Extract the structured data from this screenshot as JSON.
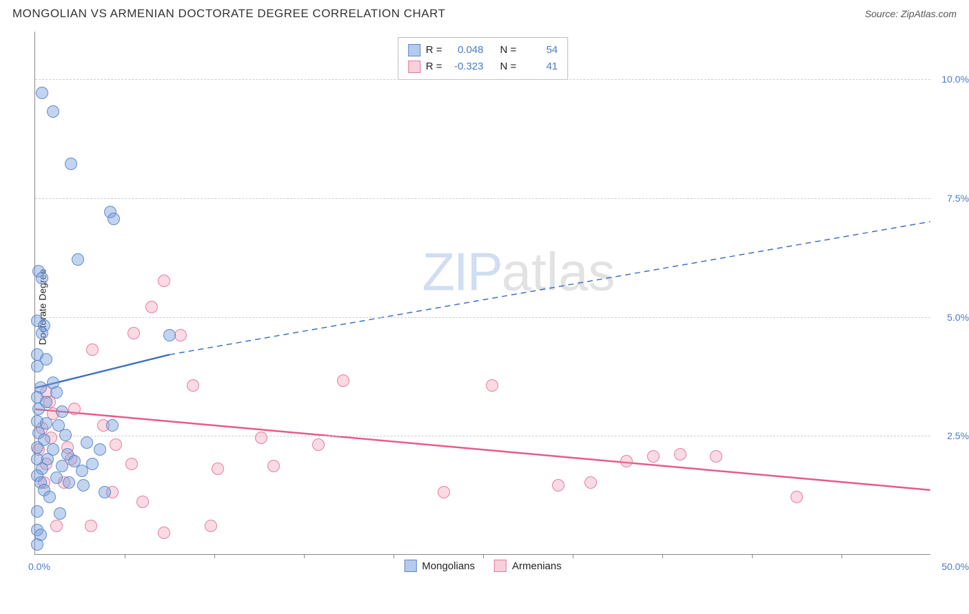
{
  "header": {
    "title": "MONGOLIAN VS ARMENIAN DOCTORATE DEGREE CORRELATION CHART",
    "source": "Source: ZipAtlas.com"
  },
  "chart": {
    "type": "scatter",
    "ylabel": "Doctorate Degree",
    "xlim": [
      0,
      50
    ],
    "ylim": [
      0,
      11
    ],
    "yticks": [
      2.5,
      5.0,
      7.5,
      10.0
    ],
    "ytick_labels": [
      "2.5%",
      "5.0%",
      "7.5%",
      "10.0%"
    ],
    "xtick_positions": [
      5,
      10,
      15,
      20,
      25,
      30,
      35,
      40,
      45
    ],
    "xlabel_min": "0.0%",
    "xlabel_max": "50.0%",
    "background_color": "#ffffff",
    "grid_color": "#cccccc",
    "axis_color": "#888888",
    "tick_label_color": "#4a7bc8",
    "series": {
      "mongolians": {
        "label": "Mongolians",
        "fill_color": "rgba(120,160,220,0.45)",
        "stroke_color": "rgba(88,130,200,0.9)",
        "marker_radius": 9,
        "trend": {
          "x0": 0,
          "y0": 3.5,
          "x1": 7.5,
          "y1": 4.2,
          "solid_until_x": 7.5,
          "dash_x1": 50,
          "dash_y1": 7.0,
          "line_color": "#3f6fc3",
          "line_width": 2.5
        },
        "R": "0.048",
        "N": "54",
        "points": [
          [
            0.4,
            9.7
          ],
          [
            1.0,
            9.3
          ],
          [
            2.0,
            8.2
          ],
          [
            4.2,
            7.2
          ],
          [
            4.4,
            7.05
          ],
          [
            2.4,
            6.2
          ],
          [
            0.2,
            5.95
          ],
          [
            0.4,
            5.8
          ],
          [
            0.1,
            4.9
          ],
          [
            0.5,
            4.8
          ],
          [
            0.4,
            4.65
          ],
          [
            7.5,
            4.6
          ],
          [
            0.1,
            4.2
          ],
          [
            0.6,
            4.1
          ],
          [
            0.1,
            3.95
          ],
          [
            1.0,
            3.6
          ],
          [
            0.3,
            3.5
          ],
          [
            1.2,
            3.4
          ],
          [
            0.1,
            3.3
          ],
          [
            0.6,
            3.2
          ],
          [
            0.2,
            3.05
          ],
          [
            1.5,
            3.0
          ],
          [
            0.1,
            2.8
          ],
          [
            0.6,
            2.75
          ],
          [
            1.3,
            2.7
          ],
          [
            4.3,
            2.7
          ],
          [
            0.2,
            2.55
          ],
          [
            1.7,
            2.5
          ],
          [
            0.5,
            2.4
          ],
          [
            2.9,
            2.35
          ],
          [
            0.1,
            2.25
          ],
          [
            1.0,
            2.2
          ],
          [
            3.6,
            2.2
          ],
          [
            1.8,
            2.1
          ],
          [
            0.1,
            2.0
          ],
          [
            0.7,
            2.0
          ],
          [
            2.2,
            1.95
          ],
          [
            3.2,
            1.9
          ],
          [
            1.5,
            1.85
          ],
          [
            0.4,
            1.8
          ],
          [
            2.6,
            1.75
          ],
          [
            0.1,
            1.65
          ],
          [
            1.2,
            1.6
          ],
          [
            0.3,
            1.5
          ],
          [
            1.9,
            1.5
          ],
          [
            2.7,
            1.45
          ],
          [
            0.5,
            1.35
          ],
          [
            3.9,
            1.3
          ],
          [
            0.8,
            1.2
          ],
          [
            0.1,
            0.9
          ],
          [
            1.4,
            0.85
          ],
          [
            0.1,
            0.5
          ],
          [
            0.3,
            0.4
          ],
          [
            0.1,
            0.2
          ]
        ]
      },
      "armenians": {
        "label": "Armenians",
        "fill_color": "rgba(240,150,175,0.35)",
        "stroke_color": "rgba(225,110,145,0.85)",
        "marker_radius": 9,
        "trend": {
          "x0": 0,
          "y0": 3.05,
          "x1": 50,
          "y1": 1.35,
          "line_color": "#e65a88",
          "line_width": 2.5
        },
        "R": "-0.323",
        "N": "41",
        "points": [
          [
            7.2,
            5.75
          ],
          [
            6.5,
            5.2
          ],
          [
            5.5,
            4.65
          ],
          [
            8.1,
            4.6
          ],
          [
            3.2,
            4.3
          ],
          [
            17.2,
            3.65
          ],
          [
            0.6,
            3.4
          ],
          [
            25.5,
            3.55
          ],
          [
            8.8,
            3.55
          ],
          [
            0.8,
            3.2
          ],
          [
            2.2,
            3.05
          ],
          [
            1.0,
            2.95
          ],
          [
            3.8,
            2.7
          ],
          [
            0.4,
            2.65
          ],
          [
            12.6,
            2.45
          ],
          [
            15.8,
            2.3
          ],
          [
            1.8,
            2.25
          ],
          [
            5.4,
            1.9
          ],
          [
            13.3,
            1.85
          ],
          [
            0.6,
            1.9
          ],
          [
            10.2,
            1.8
          ],
          [
            33.0,
            1.95
          ],
          [
            34.5,
            2.05
          ],
          [
            36.0,
            2.1
          ],
          [
            38.0,
            2.05
          ],
          [
            29.2,
            1.45
          ],
          [
            31.0,
            1.5
          ],
          [
            4.3,
            1.3
          ],
          [
            22.8,
            1.3
          ],
          [
            42.5,
            1.2
          ],
          [
            6.0,
            1.1
          ],
          [
            9.8,
            0.6
          ],
          [
            7.2,
            0.45
          ],
          [
            3.1,
            0.6
          ],
          [
            1.2,
            0.6
          ],
          [
            0.5,
            1.5
          ],
          [
            1.6,
            1.5
          ],
          [
            0.2,
            2.2
          ],
          [
            0.9,
            2.45
          ],
          [
            2.0,
            2.0
          ],
          [
            4.5,
            2.3
          ]
        ]
      }
    },
    "stats_box": {
      "rows": [
        {
          "swatch": "blue",
          "R_label": "R =",
          "R": "0.048",
          "N_label": "N =",
          "N": "54"
        },
        {
          "swatch": "pink",
          "R_label": "R =",
          "R": "-0.323",
          "N_label": "N =",
          "N": "41"
        }
      ]
    },
    "legend": [
      {
        "swatch": "blue",
        "label": "Mongolians"
      },
      {
        "swatch": "pink",
        "label": "Armenians"
      }
    ],
    "watermark": {
      "part1": "ZIP",
      "part2": "atlas"
    }
  }
}
